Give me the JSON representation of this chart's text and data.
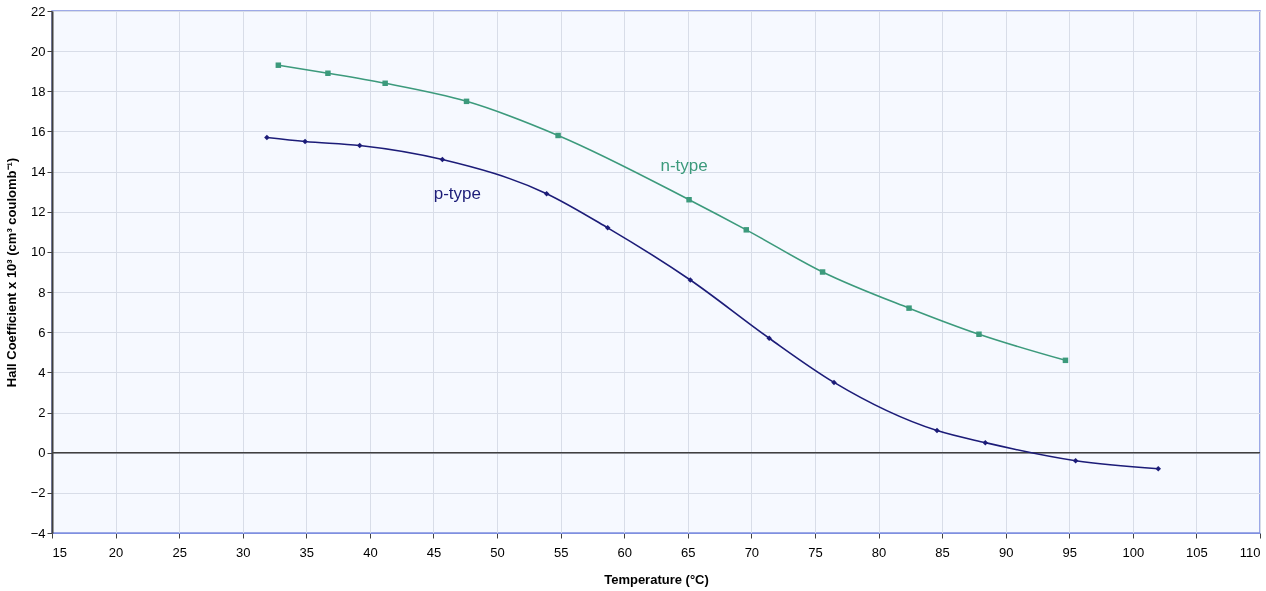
{
  "chart_data": {
    "type": "line",
    "xlabel": "Temperature (°C)",
    "ylabel": "Hall Coefficient x 10³ (cm³ coulomb⁻¹)",
    "xlim": [
      15,
      110
    ],
    "xticks": [
      15,
      20,
      25,
      30,
      35,
      40,
      45,
      50,
      55,
      60,
      65,
      70,
      75,
      80,
      85,
      90,
      95,
      100,
      105,
      110
    ],
    "ylim": [
      -4,
      22
    ],
    "yticks": [
      -4,
      -2,
      0,
      2,
      4,
      6,
      8,
      10,
      12,
      14,
      16,
      18,
      20,
      22
    ],
    "grid": true,
    "ref_lines": [
      {
        "axis": "y",
        "value": 0,
        "color": "#404040"
      }
    ],
    "series": [
      {
        "name": "n-type",
        "color": "#3c9a7c",
        "marker": "square",
        "x": [
          32.8,
          36.7,
          41.2,
          47.6,
          54.8,
          65.1,
          69.6,
          75.6,
          82.4,
          87.9,
          94.7
        ],
        "values": [
          19.3,
          18.9,
          18.4,
          17.5,
          15.8,
          12.6,
          11.1,
          9.0,
          7.2,
          5.9,
          4.6
        ]
      },
      {
        "name": "p-type",
        "color": "#1c1c78",
        "marker": "diamond",
        "x": [
          31.9,
          34.9,
          39.2,
          45.7,
          53.9,
          58.7,
          65.2,
          71.4,
          76.5,
          84.6,
          88.4,
          95.5,
          102.0
        ],
        "values": [
          15.7,
          15.5,
          15.3,
          14.6,
          12.9,
          11.2,
          8.6,
          5.7,
          3.5,
          1.1,
          0.5,
          -0.4,
          -0.8
        ]
      }
    ]
  }
}
